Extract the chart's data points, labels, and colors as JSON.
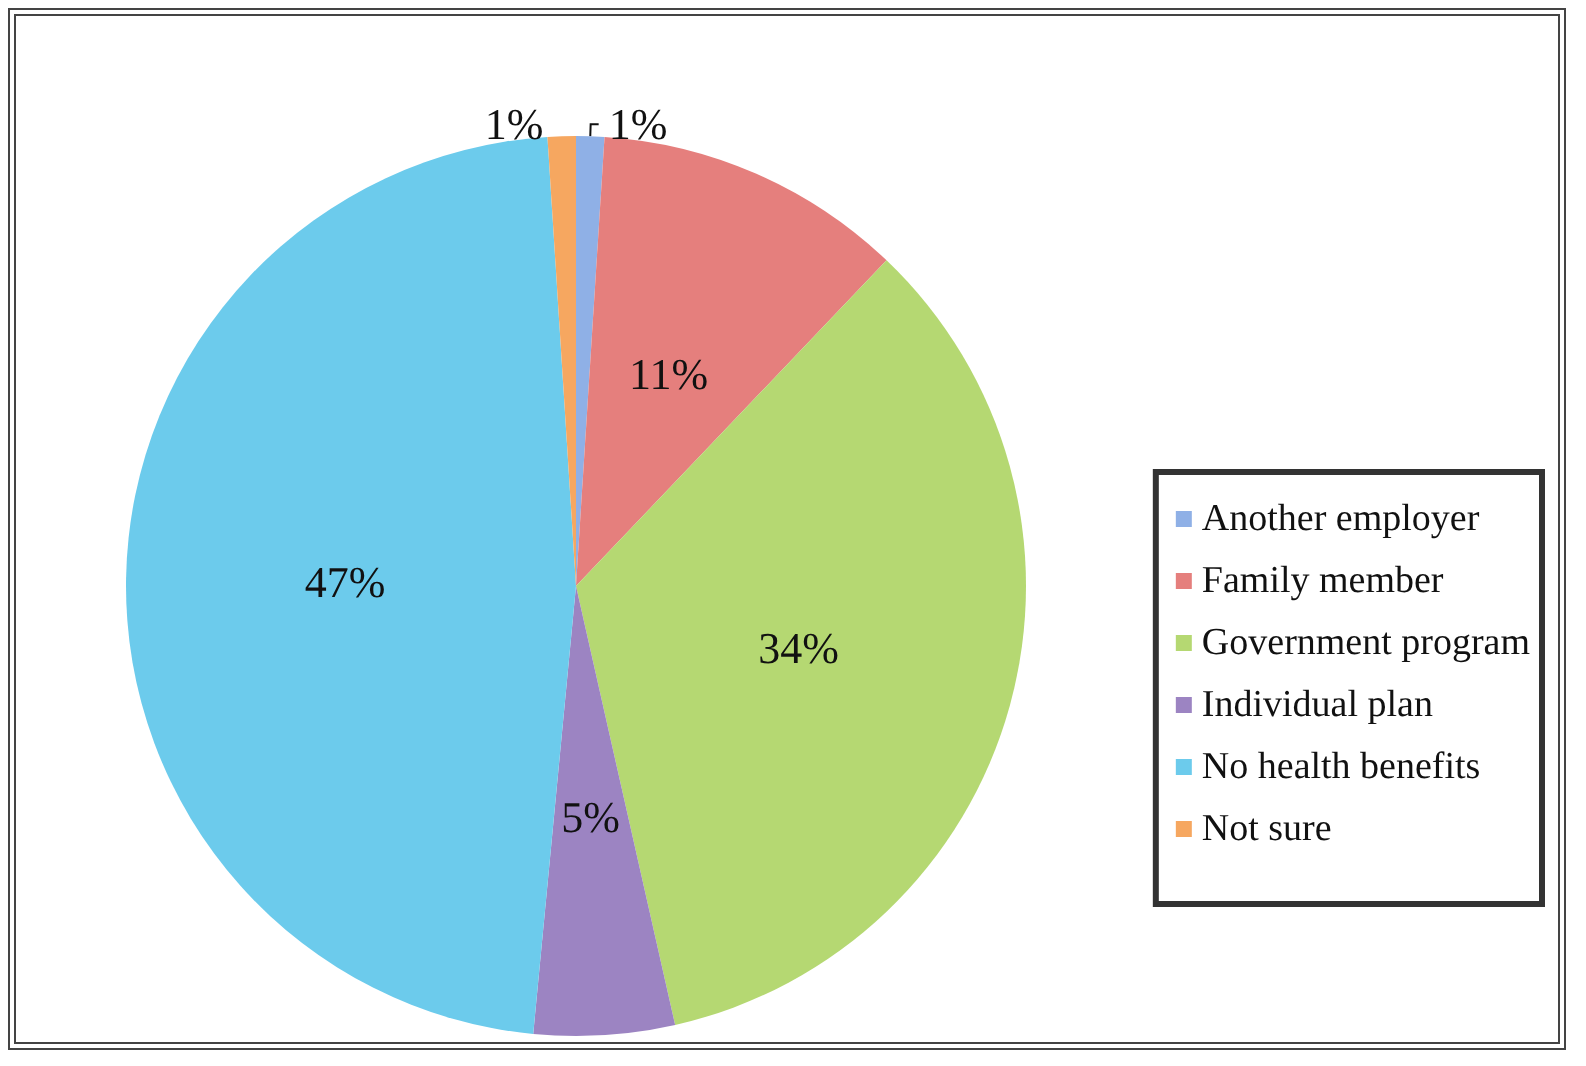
{
  "chart_data": {
    "type": "pie",
    "categories": [
      "Another employer",
      "Family member",
      "Government program",
      "Individual plan",
      "No health benefits",
      "Not sure"
    ],
    "values": [
      1,
      11,
      34,
      5,
      47,
      1
    ],
    "colors": [
      "#8fb0e6",
      "#e57f7d",
      "#b5d872",
      "#9c84c2",
      "#6ccbec",
      "#f6a760"
    ],
    "value_labels": [
      "1%",
      "11%",
      "34%",
      "5%",
      "47%",
      "1%"
    ],
    "legend": "right"
  }
}
